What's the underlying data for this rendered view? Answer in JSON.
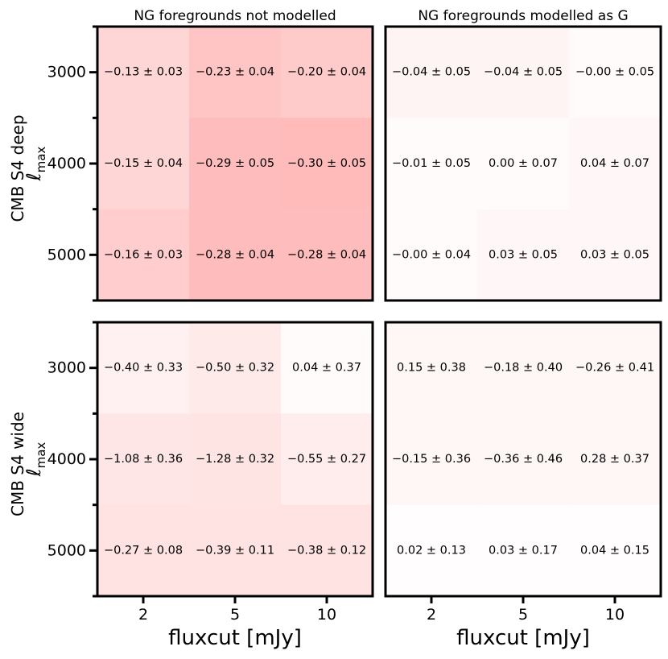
{
  "chart_data": {
    "type": "heatmap",
    "x_categories": [
      "2",
      "5",
      "10"
    ],
    "y_categories": [
      "3000",
      "4000",
      "5000"
    ],
    "xlabel": "fluxcut [mJy]",
    "color_scale": "white-to-red by negative bias value",
    "panels": [
      {
        "id": "deep-not-modelled",
        "row_label": "CMB S4 deep",
        "ylabel": "ℓ",
        "ylabel_sub": "max",
        "title": "NG foregrounds not modelled",
        "values": [
          [
            -0.13,
            -0.23,
            -0.2
          ],
          [
            -0.15,
            -0.29,
            -0.3
          ],
          [
            -0.16,
            -0.28,
            -0.28
          ]
        ],
        "labels": [
          [
            "−0.13 ± 0.03",
            "−0.23 ± 0.04",
            "−0.20 ± 0.04"
          ],
          [
            "−0.15 ± 0.04",
            "−0.29 ± 0.05",
            "−0.30 ± 0.05"
          ],
          [
            "−0.16 ± 0.03",
            "−0.28 ± 0.04",
            "−0.28 ± 0.04"
          ]
        ]
      },
      {
        "id": "deep-modelled",
        "row_label": "CMB S4 deep",
        "title": "NG foregrounds modelled as G",
        "values": [
          [
            -0.04,
            -0.04,
            -0.0
          ],
          [
            -0.01,
            0.0,
            0.04
          ],
          [
            -0.0,
            0.03,
            0.03
          ]
        ],
        "labels": [
          [
            "−0.04 ± 0.05",
            "−0.04 ± 0.05",
            "−0.00 ± 0.05"
          ],
          [
            "−0.01 ± 0.05",
            "0.00 ± 0.07",
            "0.04 ± 0.07"
          ],
          [
            "−0.00 ± 0.04",
            "0.03 ± 0.05",
            "0.03 ± 0.05"
          ]
        ]
      },
      {
        "id": "wide-not-modelled",
        "row_label": "CMB S4 wide",
        "ylabel": "ℓ",
        "ylabel_sub": "max",
        "title": "",
        "values": [
          [
            -0.4,
            -0.5,
            0.04
          ],
          [
            -1.08,
            -1.28,
            -0.55
          ],
          [
            -0.27,
            -0.39,
            -0.38
          ]
        ],
        "labels": [
          [
            "−0.40 ± 0.33",
            "−0.50 ± 0.32",
            "0.04 ± 0.37"
          ],
          [
            "−1.08 ± 0.36",
            "−1.28 ± 0.32",
            "−0.55 ± 0.27"
          ],
          [
            "−0.27 ± 0.08",
            "−0.39 ± 0.11",
            "−0.38 ± 0.12"
          ]
        ]
      },
      {
        "id": "wide-modelled",
        "row_label": "CMB S4 wide",
        "title": "",
        "values": [
          [
            0.15,
            -0.18,
            -0.26
          ],
          [
            -0.15,
            -0.36,
            0.28
          ],
          [
            0.02,
            0.03,
            0.04
          ]
        ],
        "labels": [
          [
            "0.15 ± 0.38",
            "−0.18 ± 0.40",
            "−0.26 ± 0.41"
          ],
          [
            "−0.15 ± 0.36",
            "−0.36 ± 0.46",
            "0.28 ± 0.37"
          ],
          [
            "0.02 ± 0.13",
            "0.03 ± 0.17",
            "0.04 ± 0.15"
          ]
        ]
      }
    ],
    "cell_colors": {
      "deep-not-modelled": [
        [
          "#ffd6d6",
          "#ffc4c4",
          "#ffcaca"
        ],
        [
          "#ffd6d6",
          "#ffbcbc",
          "#ffbaba"
        ],
        [
          "#ffcdcd",
          "#ffbcbc",
          "#ffbcbc"
        ]
      ],
      "deep-modelled": [
        [
          "#fff4f4",
          "#fff4f4",
          "#fffbfb"
        ],
        [
          "#fffbfb",
          "#fffbfb",
          "#fff7f7"
        ],
        [
          "#fffbfb",
          "#fff7f7",
          "#fff7f7"
        ]
      ],
      "wide-not-modelled": [
        [
          "#fff1f1",
          "#ffeaea",
          "#fffbfb"
        ],
        [
          "#ffe6e6",
          "#ffe4e4",
          "#ffecec"
        ],
        [
          "#ffe2e2",
          "#ffe2e2",
          "#ffe2e2"
        ]
      ],
      "wide-modelled": [
        [
          "#fff6f6",
          "#fff6f6",
          "#fff6f6"
        ],
        [
          "#fff6f6",
          "#fff6f6",
          "#fff6f6"
        ],
        [
          "#fffdfd",
          "#fffdfd",
          "#fffdfd"
        ]
      ]
    }
  }
}
